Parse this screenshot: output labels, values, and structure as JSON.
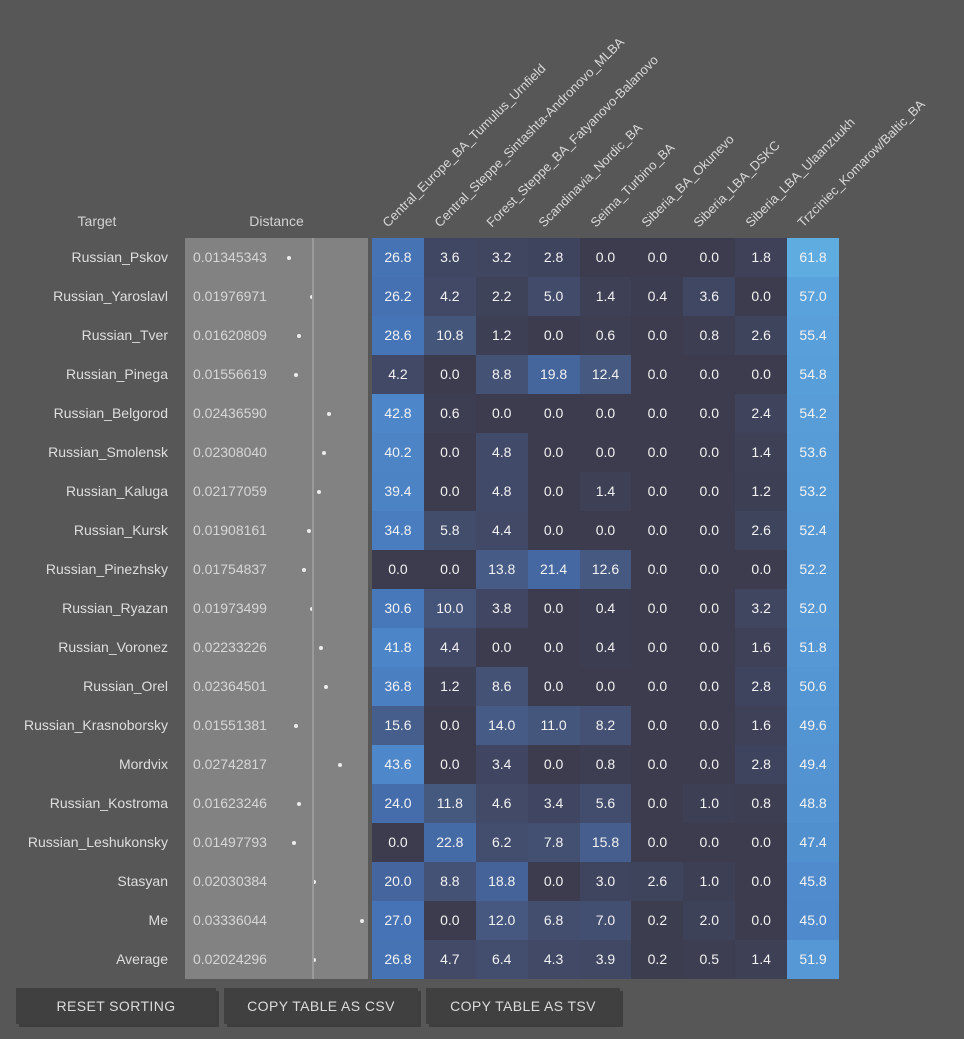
{
  "header": {
    "target_label": "Target",
    "distance_label": "Distance"
  },
  "columns": [
    "Central_Europe_BA_Tumulus_Urnfield",
    "Central_Steppe_Sintashta-Andronovo_MLBA",
    "Forest_Steppe_BA_Fatyanovo-Balanovo",
    "Scandinavia_Nordic_BA",
    "Seima_Turbino_BA",
    "Siberia_BA_Okunevo",
    "Siberia_LBA_DSKC",
    "Siberia_LBA_Ulaanzuukh",
    "Trzciniec_Komarow/Baltic_BA"
  ],
  "rows": [
    {
      "target": "Russian_Pskov",
      "distance": "0.01345343",
      "values": [
        26.8,
        3.6,
        3.2,
        2.8,
        0.0,
        0.0,
        0.0,
        1.8,
        61.8
      ]
    },
    {
      "target": "Russian_Yaroslavl",
      "distance": "0.01976971",
      "values": [
        26.2,
        4.2,
        2.2,
        5.0,
        1.4,
        0.4,
        3.6,
        0.0,
        57.0
      ]
    },
    {
      "target": "Russian_Tver",
      "distance": "0.01620809",
      "values": [
        28.6,
        10.8,
        1.2,
        0.0,
        0.6,
        0.0,
        0.8,
        2.6,
        55.4
      ]
    },
    {
      "target": "Russian_Pinega",
      "distance": "0.01556619",
      "values": [
        4.2,
        0.0,
        8.8,
        19.8,
        12.4,
        0.0,
        0.0,
        0.0,
        54.8
      ]
    },
    {
      "target": "Russian_Belgorod",
      "distance": "0.02436590",
      "values": [
        42.8,
        0.6,
        0.0,
        0.0,
        0.0,
        0.0,
        0.0,
        2.4,
        54.2
      ]
    },
    {
      "target": "Russian_Smolensk",
      "distance": "0.02308040",
      "values": [
        40.2,
        0.0,
        4.8,
        0.0,
        0.0,
        0.0,
        0.0,
        1.4,
        53.6
      ]
    },
    {
      "target": "Russian_Kaluga",
      "distance": "0.02177059",
      "values": [
        39.4,
        0.0,
        4.8,
        0.0,
        1.4,
        0.0,
        0.0,
        1.2,
        53.2
      ]
    },
    {
      "target": "Russian_Kursk",
      "distance": "0.01908161",
      "values": [
        34.8,
        5.8,
        4.4,
        0.0,
        0.0,
        0.0,
        0.0,
        2.6,
        52.4
      ]
    },
    {
      "target": "Russian_Pinezhsky",
      "distance": "0.01754837",
      "values": [
        0.0,
        0.0,
        13.8,
        21.4,
        12.6,
        0.0,
        0.0,
        0.0,
        52.2
      ]
    },
    {
      "target": "Russian_Ryazan",
      "distance": "0.01973499",
      "values": [
        30.6,
        10.0,
        3.8,
        0.0,
        0.4,
        0.0,
        0.0,
        3.2,
        52.0
      ]
    },
    {
      "target": "Russian_Voronez",
      "distance": "0.02233226",
      "values": [
        41.8,
        4.4,
        0.0,
        0.0,
        0.4,
        0.0,
        0.0,
        1.6,
        51.8
      ]
    },
    {
      "target": "Russian_Orel",
      "distance": "0.02364501",
      "values": [
        36.8,
        1.2,
        8.6,
        0.0,
        0.0,
        0.0,
        0.0,
        2.8,
        50.6
      ]
    },
    {
      "target": "Russian_Krasnoborsky",
      "distance": "0.01551381",
      "values": [
        15.6,
        0.0,
        14.0,
        11.0,
        8.2,
        0.0,
        0.0,
        1.6,
        49.6
      ]
    },
    {
      "target": "Mordvix",
      "distance": "0.02742817",
      "values": [
        43.6,
        0.0,
        3.4,
        0.0,
        0.8,
        0.0,
        0.0,
        2.8,
        49.4
      ]
    },
    {
      "target": "Russian_Kostroma",
      "distance": "0.01623246",
      "values": [
        24.0,
        11.8,
        4.6,
        3.4,
        5.6,
        0.0,
        1.0,
        0.8,
        48.8
      ]
    },
    {
      "target": "Russian_Leshukonsky",
      "distance": "0.01497793",
      "values": [
        0.0,
        22.8,
        6.2,
        7.8,
        15.8,
        0.0,
        0.0,
        0.0,
        47.4
      ]
    },
    {
      "target": "Stasyan",
      "distance": "0.02030384",
      "values": [
        20.0,
        8.8,
        18.8,
        0.0,
        3.0,
        2.6,
        1.0,
        0.0,
        45.8
      ]
    },
    {
      "target": "Me",
      "distance": "0.03336044",
      "values": [
        27.0,
        0.0,
        12.0,
        6.8,
        7.0,
        0.2,
        2.0,
        0.0,
        45.0
      ]
    },
    {
      "target": "Average",
      "distance": "0.02024296",
      "values": [
        26.8,
        4.7,
        6.4,
        4.3,
        3.9,
        0.2,
        0.5,
        1.4,
        51.9
      ]
    }
  ],
  "buttons": {
    "reset": "RESET SORTING",
    "csv": "COPY TABLE AS CSV",
    "tsv": "COPY TABLE AS TSV"
  },
  "colors": {
    "background": "#575757",
    "distance_cell": "#828282",
    "distance_marker_line": "#9a9a9a",
    "heatmap_stops": [
      [
        0,
        "#3C3C4E"
      ],
      [
        5,
        "#424B6A"
      ],
      [
        13,
        "#465A82"
      ],
      [
        20,
        "#45659E"
      ],
      [
        27,
        "#4573B5"
      ],
      [
        43,
        "#4D87CA"
      ],
      [
        62,
        "#5FACE1"
      ]
    ]
  }
}
